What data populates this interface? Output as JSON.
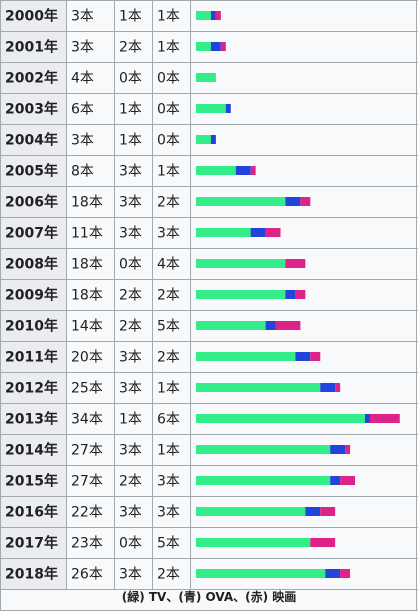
{
  "chart_data": {
    "type": "bar",
    "orientation": "horizontal",
    "stacked": true,
    "categories": [
      "2000年",
      "2001年",
      "2002年",
      "2003年",
      "2004年",
      "2005年",
      "2006年",
      "2007年",
      "2008年",
      "2009年",
      "2010年",
      "2011年",
      "2012年",
      "2013年",
      "2014年",
      "2015年",
      "2016年",
      "2017年",
      "2018年"
    ],
    "series": [
      {
        "name": "(緑) TV",
        "color": "#33ee88",
        "values": [
          3,
          3,
          4,
          6,
          3,
          8,
          18,
          11,
          18,
          18,
          14,
          20,
          25,
          34,
          27,
          27,
          22,
          23,
          26
        ],
        "labels": [
          "3本",
          "3本",
          "4本",
          "6本",
          "3本",
          "8本",
          "18本",
          "11本",
          "18本",
          "18本",
          "14本",
          "20本",
          "25本",
          "34本",
          "27本",
          "27本",
          "22本",
          "23本",
          "26本"
        ]
      },
      {
        "name": "(青) OVA",
        "color": "#2244dd",
        "values": [
          1,
          2,
          0,
          1,
          1,
          3,
          3,
          3,
          0,
          2,
          2,
          3,
          3,
          1,
          3,
          2,
          3,
          0,
          3
        ],
        "labels": [
          "1本",
          "2本",
          "0本",
          "1本",
          "1本",
          "3本",
          "3本",
          "3本",
          "0本",
          "2本",
          "2本",
          "3本",
          "3本",
          "1本",
          "3本",
          "2本",
          "3本",
          "0本",
          "3本"
        ]
      },
      {
        "name": "(赤) 映画",
        "color": "#dd2288",
        "values": [
          1,
          1,
          0,
          0,
          0,
          1,
          2,
          3,
          4,
          2,
          5,
          2,
          1,
          6,
          1,
          3,
          3,
          5,
          2
        ],
        "labels": [
          "1本",
          "1本",
          "0本",
          "0本",
          "0本",
          "1本",
          "2本",
          "3本",
          "4本",
          "2本",
          "5本",
          "2本",
          "1本",
          "6本",
          "1本",
          "3本",
          "3本",
          "5本",
          "2本"
        ]
      }
    ],
    "legend_text": "(緑) TV、(青) OVA、(赤) 映画",
    "legend_position": "bottom"
  }
}
